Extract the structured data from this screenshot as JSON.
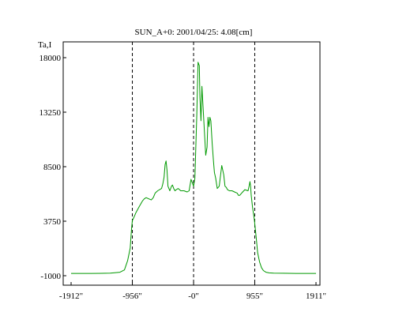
{
  "chart_data": {
    "type": "line",
    "title": "SUN_A+0: 2001/04/25: 4.08[cm]",
    "ylabel": "Ta,I",
    "xlabel": "",
    "xlim": [
      -1912,
      1911
    ],
    "ylim": [
      -1000,
      18000
    ],
    "x_tick_values": [
      -1912,
      -956,
      0,
      955,
      1911
    ],
    "x_tick_labels": [
      "-1912\"",
      "-956\"",
      "-0\"",
      "955\"",
      "1911\""
    ],
    "y_tick_values": [
      -1000,
      3750,
      8500,
      13250,
      18000
    ],
    "y_tick_labels": [
      "-1000",
      "3750",
      "8500",
      "13250",
      "18000"
    ],
    "vertical_reference_lines": [
      -956,
      0,
      955
    ],
    "grid": false,
    "legend": "none",
    "series": [
      {
        "color": "#009900",
        "x": [
          -1912,
          -1600,
          -1300,
          -1150,
          -1080,
          -1030,
          -990,
          -970,
          -956,
          -930,
          -900,
          -850,
          -800,
          -770,
          -740,
          -700,
          -660,
          -630,
          -600,
          -560,
          -500,
          -480,
          -460,
          -445,
          -430,
          -415,
          -400,
          -370,
          -345,
          -330,
          -310,
          -290,
          -270,
          -240,
          -200,
          -150,
          -100,
          -70,
          -40,
          -20,
          0,
          20,
          50,
          70,
          90,
          100,
          115,
          130,
          150,
          170,
          190,
          210,
          225,
          240,
          255,
          270,
          290,
          310,
          325,
          345,
          370,
          400,
          440,
          470,
          490,
          510,
          530,
          560,
          600,
          640,
          680,
          700,
          720,
          750,
          800,
          850,
          870,
          880,
          890,
          900,
          920,
          950,
          980,
          1000,
          1030,
          1060,
          1090,
          1130,
          1180,
          1250,
          1400,
          1600,
          1911
        ],
        "y": [
          -800,
          -800,
          -780,
          -700,
          -500,
          300,
          1400,
          3000,
          3800,
          4100,
          4500,
          5000,
          5500,
          5700,
          5800,
          5700,
          5600,
          5800,
          6200,
          6400,
          6600,
          7000,
          7600,
          8700,
          9000,
          8200,
          6800,
          6400,
          6800,
          6900,
          6600,
          6400,
          6500,
          6600,
          6400,
          6400,
          6300,
          6400,
          7400,
          7100,
          6800,
          7500,
          13000,
          17600,
          17300,
          14500,
          12500,
          15500,
          13500,
          11500,
          9500,
          10200,
          12800,
          12000,
          12800,
          12500,
          10500,
          9000,
          8000,
          7500,
          6600,
          6800,
          8600,
          7800,
          6800,
          6700,
          6500,
          6400,
          6400,
          6300,
          6200,
          6000,
          6000,
          6200,
          6500,
          6400,
          6900,
          7200,
          6800,
          6000,
          5000,
          3800,
          2200,
          1000,
          200,
          -300,
          -550,
          -700,
          -750,
          -780,
          -790,
          -800,
          -800
        ]
      }
    ]
  }
}
